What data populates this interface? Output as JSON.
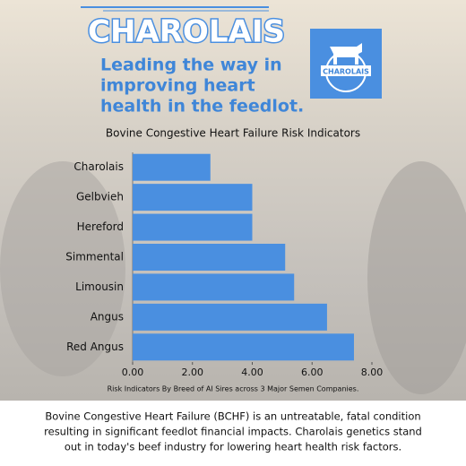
{
  "header": {
    "title": "CHAROLAIS",
    "subtitle_lines": [
      "Leading the way in",
      "improving heart",
      "health in the feedlot."
    ],
    "logo_text": "CHAROLAIS"
  },
  "chart_data": {
    "type": "hbar",
    "title": "Bovine Congestive Heart Failure Risk Indicators",
    "categories": [
      "Charolais",
      "Gelbvieh",
      "Hereford",
      "Simmental",
      "Limousin",
      "Angus",
      "Red Angus"
    ],
    "values": [
      2.6,
      4.0,
      4.0,
      5.1,
      5.4,
      6.5,
      7.4
    ],
    "color": "#4a8fe0",
    "xlim": [
      0,
      8
    ],
    "xticks": [
      {
        "value": 0,
        "label": "0.00"
      },
      {
        "value": 2,
        "label": "2.00"
      },
      {
        "value": 4,
        "label": "4.00"
      },
      {
        "value": 6,
        "label": "6.00"
      },
      {
        "value": 8,
        "label": "8.00"
      }
    ],
    "note": "Risk Indicators By Breed of AI Sires across 3 Major Semen Companies."
  },
  "footer": {
    "lines": [
      "Bovine Congestive Heart Failure (BCHF) is an untreatable, fatal condition",
      "resulting in significant feedlot financial impacts. Charolais genetics stand",
      "out in today's beef industry for lowering heart health risk factors."
    ]
  }
}
